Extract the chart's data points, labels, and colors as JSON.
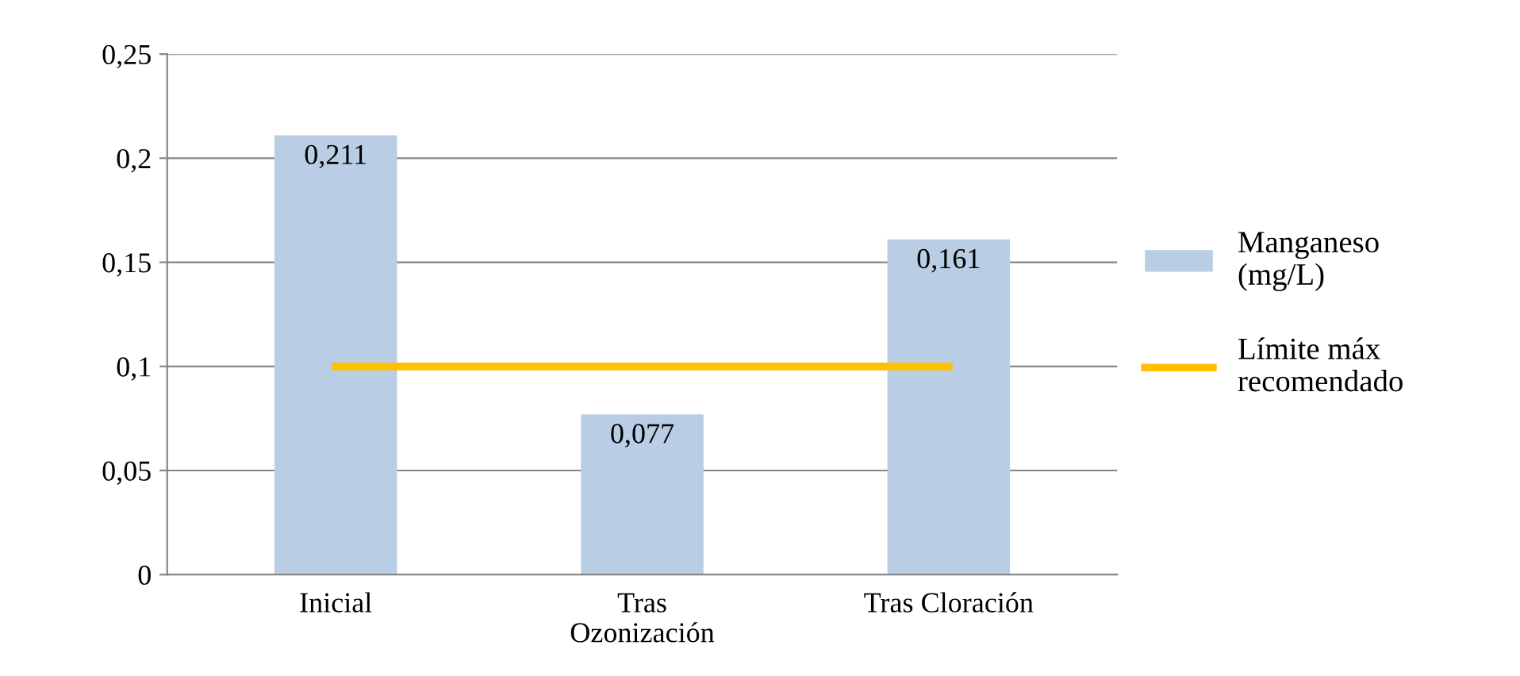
{
  "chart_data": {
    "type": "bar",
    "categories": [
      "Inicial",
      "Tras\nOzonización",
      "Tras Cloración"
    ],
    "series": [
      {
        "name": "Manganeso\n(mg/L)",
        "color": "#b9cde5",
        "values": [
          0.211,
          0.077,
          0.161
        ],
        "value_labels": [
          "0,211",
          "0,077",
          "0,161"
        ]
      },
      {
        "name": "Límite máx\nrecomendado",
        "type": "line",
        "color": "#ffc000",
        "values": [
          0.1,
          0.1,
          0.1
        ]
      }
    ],
    "ylim": [
      0,
      0.25
    ],
    "yticks": [
      {
        "value": 0,
        "label": "0"
      },
      {
        "value": 0.05,
        "label": "0,05"
      },
      {
        "value": 0.1,
        "label": "0,1"
      },
      {
        "value": 0.15,
        "label": "0,15"
      },
      {
        "value": 0.2,
        "label": "0,2"
      },
      {
        "value": 0.25,
        "label": "0,25"
      }
    ],
    "grid": "y",
    "legend": "right",
    "marker": "none",
    "line_style": "solid"
  }
}
